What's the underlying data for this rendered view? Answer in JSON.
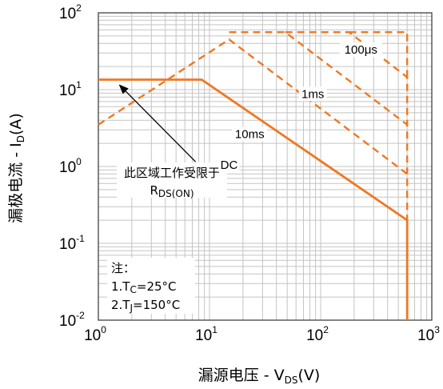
{
  "chart_data": {
    "type": "line",
    "x_scale": "log",
    "y_scale": "log",
    "xlim": [
      1,
      1000
    ],
    "ylim": [
      0.01,
      100
    ],
    "grid": true,
    "x_ticks": [
      {
        "base": "10",
        "exp": "0"
      },
      {
        "base": "10",
        "exp": "1"
      },
      {
        "base": "10",
        "exp": "2"
      },
      {
        "base": "10",
        "exp": "3"
      }
    ],
    "y_ticks": [
      {
        "base": "10",
        "exp": "-2"
      },
      {
        "base": "10",
        "exp": "-1"
      },
      {
        "base": "10",
        "exp": "0"
      },
      {
        "base": "10",
        "exp": "1"
      },
      {
        "base": "10",
        "exp": "2"
      }
    ],
    "xlabel": {
      "main": "漏源电压 - V",
      "sub": "DS",
      "unit": "(V)"
    },
    "ylabel": {
      "main": "漏极电流 - I",
      "sub": "D",
      "unit": "(A)"
    },
    "color": "#f07820",
    "series": [
      {
        "name": "DC",
        "style": "solid",
        "x": [
          1,
          8.5,
          600,
          600
        ],
        "y": [
          13.5,
          13.5,
          0.2,
          0.01
        ]
      },
      {
        "name": "10ms",
        "style": "dashed",
        "x": [
          1,
          15,
          600,
          600
        ],
        "y": [
          3.5,
          45,
          0.8,
          0.2
        ]
      },
      {
        "name": "1ms",
        "style": "dashed",
        "x": [
          15,
          48,
          600,
          600
        ],
        "y": [
          56,
          56,
          3.5,
          0.8
        ]
      },
      {
        "name": "100μs",
        "style": "dashed",
        "x": [
          48,
          180,
          600,
          600
        ],
        "y": [
          56,
          56,
          14.5,
          3.5
        ]
      },
      {
        "name": "",
        "style": "dashed",
        "x": [
          180,
          600,
          600
        ],
        "y": [
          56,
          56,
          14.5
        ]
      }
    ],
    "curve_labels": [
      {
        "text": "100μs",
        "x": 230,
        "y": 30
      },
      {
        "text": "1ms",
        "x": 85,
        "y": 8
      },
      {
        "text": "10ms",
        "x": 23,
        "y": 2.4
      },
      {
        "text": "DC",
        "x": 15,
        "y": 0.95
      }
    ],
    "annotation": {
      "line1": "此区域工作受限于",
      "line2_main": "R",
      "line2_sub": "DS(ON)",
      "arrow_from": [
        7.5,
        1.15
      ],
      "arrow_to": [
        1.55,
        11.5
      ]
    },
    "notes": {
      "title": "注：",
      "line1_pre": "1.T",
      "line1_sub": "C",
      "line1_post": "=25°C",
      "line2_pre": "2.T",
      "line2_sub": "J",
      "line2_post": "=150°C"
    }
  }
}
